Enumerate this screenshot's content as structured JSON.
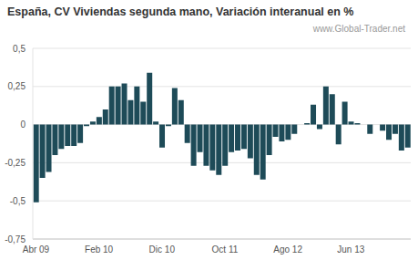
{
  "chart_data": {
    "type": "bar",
    "title": "España, CV Viviendas segunda mano, Variación interanual en %",
    "annotations": [
      "www.Global-Trader.net"
    ],
    "categories": [
      "Abr 09",
      null,
      null,
      null,
      null,
      null,
      null,
      null,
      null,
      null,
      "Feb 10",
      null,
      null,
      null,
      null,
      null,
      null,
      null,
      null,
      null,
      "Dic 10",
      null,
      null,
      null,
      null,
      null,
      null,
      null,
      null,
      null,
      "Oct 11",
      null,
      null,
      null,
      null,
      null,
      null,
      null,
      null,
      null,
      "Ago 12",
      null,
      null,
      null,
      null,
      null,
      null,
      null,
      null,
      null,
      "Jun 13",
      null,
      null,
      null,
      null,
      null,
      null,
      null,
      null,
      null
    ],
    "values": [
      -0.51,
      -0.35,
      -0.31,
      -0.2,
      -0.16,
      -0.14,
      -0.14,
      -0.12,
      -0.01,
      0.02,
      0.05,
      0.1,
      0.25,
      0.25,
      0.27,
      0.16,
      0.25,
      0.15,
      0.34,
      0.02,
      -0.15,
      -0.01,
      0.24,
      0.16,
      -0.12,
      -0.27,
      -0.18,
      -0.27,
      -0.3,
      -0.33,
      -0.27,
      -0.18,
      -0.17,
      -0.16,
      -0.22,
      -0.33,
      -0.36,
      -0.2,
      -0.08,
      -0.11,
      -0.1,
      -0.06,
      0,
      0.01,
      0.13,
      -0.03,
      0.25,
      0.2,
      -0.13,
      0.15,
      0.02,
      0.01,
      0,
      -0.06,
      0,
      -0.04,
      -0.1,
      -0.06,
      -0.17,
      -0.15
    ],
    "color": "#1e4b58",
    "ylim": [
      -0.75,
      0.5
    ],
    "yticks": [
      {
        "value": -0.75,
        "label": "-0,75"
      },
      {
        "value": -0.5,
        "label": "-0,5"
      },
      {
        "value": -0.25,
        "label": "-0,25"
      },
      0,
      {
        "value": 0.25,
        "label": "0,25"
      },
      {
        "value": 0.5,
        "label": "0,5"
      }
    ],
    "grid": true
  }
}
